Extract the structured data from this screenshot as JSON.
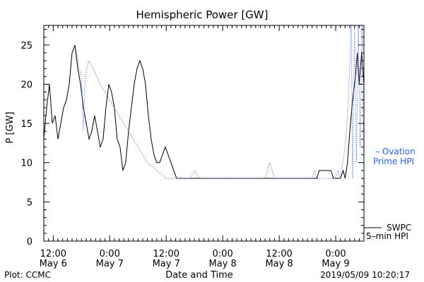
{
  "chart_data": {
    "type": "line",
    "title": "Hemispheric Power [GW]",
    "xlabel": "Date and Time",
    "ylabel": "P [GW]",
    "ylim": [
      0,
      27.5
    ],
    "xlim": [
      0,
      68
    ],
    "yticks": [
      0,
      5,
      10,
      15,
      20,
      25
    ],
    "xticks": [
      {
        "x": 2,
        "time": "12:00",
        "date": "May 6"
      },
      {
        "x": 14,
        "time": "0:00",
        "date": "May 7"
      },
      {
        "x": 26,
        "time": "12:00",
        "date": "May 7"
      },
      {
        "x": 38,
        "time": "0:00",
        "date": "May 8"
      },
      {
        "x": 50,
        "time": "12:00",
        "date": "May 8"
      },
      {
        "x": 62,
        "time": "0:00",
        "date": "May 9"
      }
    ],
    "x_unit": "hours since May 6 10:00",
    "legend_position": "right",
    "series": [
      {
        "name": "SWPC 5-min HPI",
        "label_lines": [
          "SWPC",
          "5–min HPI"
        ],
        "color": "#000000",
        "style": "solid",
        "points": [
          [
            0,
            13
          ],
          [
            0.6,
            17
          ],
          [
            1.2,
            20
          ],
          [
            1.8,
            15
          ],
          [
            2.4,
            16
          ],
          [
            3.0,
            13
          ],
          [
            3.6,
            15
          ],
          [
            4.2,
            17
          ],
          [
            4.8,
            18
          ],
          [
            5.4,
            20
          ],
          [
            6.0,
            24
          ],
          [
            6.6,
            25
          ],
          [
            7.2,
            22
          ],
          [
            7.8,
            20
          ],
          [
            8.4,
            17
          ],
          [
            9.0,
            15
          ],
          [
            9.6,
            13
          ],
          [
            10.2,
            14
          ],
          [
            10.8,
            16
          ],
          [
            11.4,
            14
          ],
          [
            12.0,
            12
          ],
          [
            12.6,
            13
          ],
          [
            13.2,
            17
          ],
          [
            13.8,
            20
          ],
          [
            14.4,
            19
          ],
          [
            15.0,
            17
          ],
          [
            15.6,
            13
          ],
          [
            16.2,
            12
          ],
          [
            16.8,
            9
          ],
          [
            17.4,
            10
          ],
          [
            18.0,
            14
          ],
          [
            18.6,
            17
          ],
          [
            19.2,
            20
          ],
          [
            19.8,
            22
          ],
          [
            20.4,
            23
          ],
          [
            21.0,
            22
          ],
          [
            21.6,
            20
          ],
          [
            22.2,
            16
          ],
          [
            22.8,
            13
          ],
          [
            23.4,
            11
          ],
          [
            24.0,
            10
          ],
          [
            24.6,
            10
          ],
          [
            25.2,
            11
          ],
          [
            25.8,
            12
          ],
          [
            26.4,
            11
          ],
          [
            27.0,
            10
          ],
          [
            27.6,
            9
          ],
          [
            28.2,
            8
          ],
          [
            29.0,
            8
          ],
          [
            35.0,
            8
          ],
          [
            40.0,
            8
          ],
          [
            45.0,
            8
          ],
          [
            50.0,
            8
          ],
          [
            55.0,
            8
          ],
          [
            58.0,
            8
          ],
          [
            58.5,
            9
          ],
          [
            61.0,
            9
          ],
          [
            61.5,
            8
          ],
          [
            63.0,
            8
          ],
          [
            63.6,
            9
          ],
          [
            64.0,
            8
          ],
          [
            64.5,
            10
          ],
          [
            65.0,
            14
          ],
          [
            65.6,
            18
          ],
          [
            66.2,
            21
          ],
          [
            66.6,
            24
          ],
          [
            67.0,
            20
          ],
          [
            67.5,
            24
          ],
          [
            68,
            20
          ]
        ]
      },
      {
        "name": "Ovation Prime HPI",
        "label_lines": [
          "– Ovation",
          "Prime HPI"
        ],
        "color": "#2a5fd8",
        "style": "dotted",
        "points": [
          [
            6.6,
            25
          ],
          [
            7.0,
            24
          ],
          [
            7.5,
            22
          ],
          [
            8.0,
            21
          ],
          [
            8.4,
            14
          ],
          [
            8.8,
            21
          ],
          [
            9.5,
            23
          ],
          [
            10.5,
            22
          ],
          [
            12.0,
            20
          ],
          [
            14.0,
            18
          ],
          [
            16.0,
            16
          ],
          [
            18.0,
            14
          ],
          [
            20.0,
            12
          ],
          [
            22.0,
            10
          ],
          [
            24.0,
            9
          ],
          [
            26.0,
            8
          ],
          [
            28.0,
            8
          ],
          [
            31.0,
            8
          ],
          [
            32.0,
            9
          ],
          [
            33.0,
            8
          ],
          [
            36.0,
            8
          ],
          [
            40.0,
            8
          ],
          [
            44.0,
            8
          ],
          [
            47.0,
            8
          ],
          [
            48.0,
            10
          ],
          [
            49.0,
            8
          ],
          [
            52.0,
            8
          ],
          [
            56.0,
            8
          ],
          [
            57.0,
            8
          ],
          [
            57.5,
            9
          ],
          [
            58.0,
            8
          ],
          [
            60.0,
            8
          ],
          [
            62.0,
            8
          ],
          [
            62.5,
            9
          ],
          [
            63.0,
            8
          ],
          [
            63.5,
            10
          ],
          [
            64.0,
            12
          ],
          [
            64.5,
            16
          ],
          [
            65.0,
            22
          ],
          [
            65.3,
            27.5
          ],
          [
            65.6,
            8
          ],
          [
            66.0,
            27.5
          ],
          [
            66.4,
            10
          ],
          [
            66.8,
            27.5
          ],
          [
            67.2,
            12
          ],
          [
            67.6,
            27.5
          ],
          [
            68,
            8
          ]
        ]
      }
    ]
  },
  "footer": {
    "plot_credit": "Plot: CCMC",
    "timestamp": "2019/05/09 10:20:17"
  }
}
